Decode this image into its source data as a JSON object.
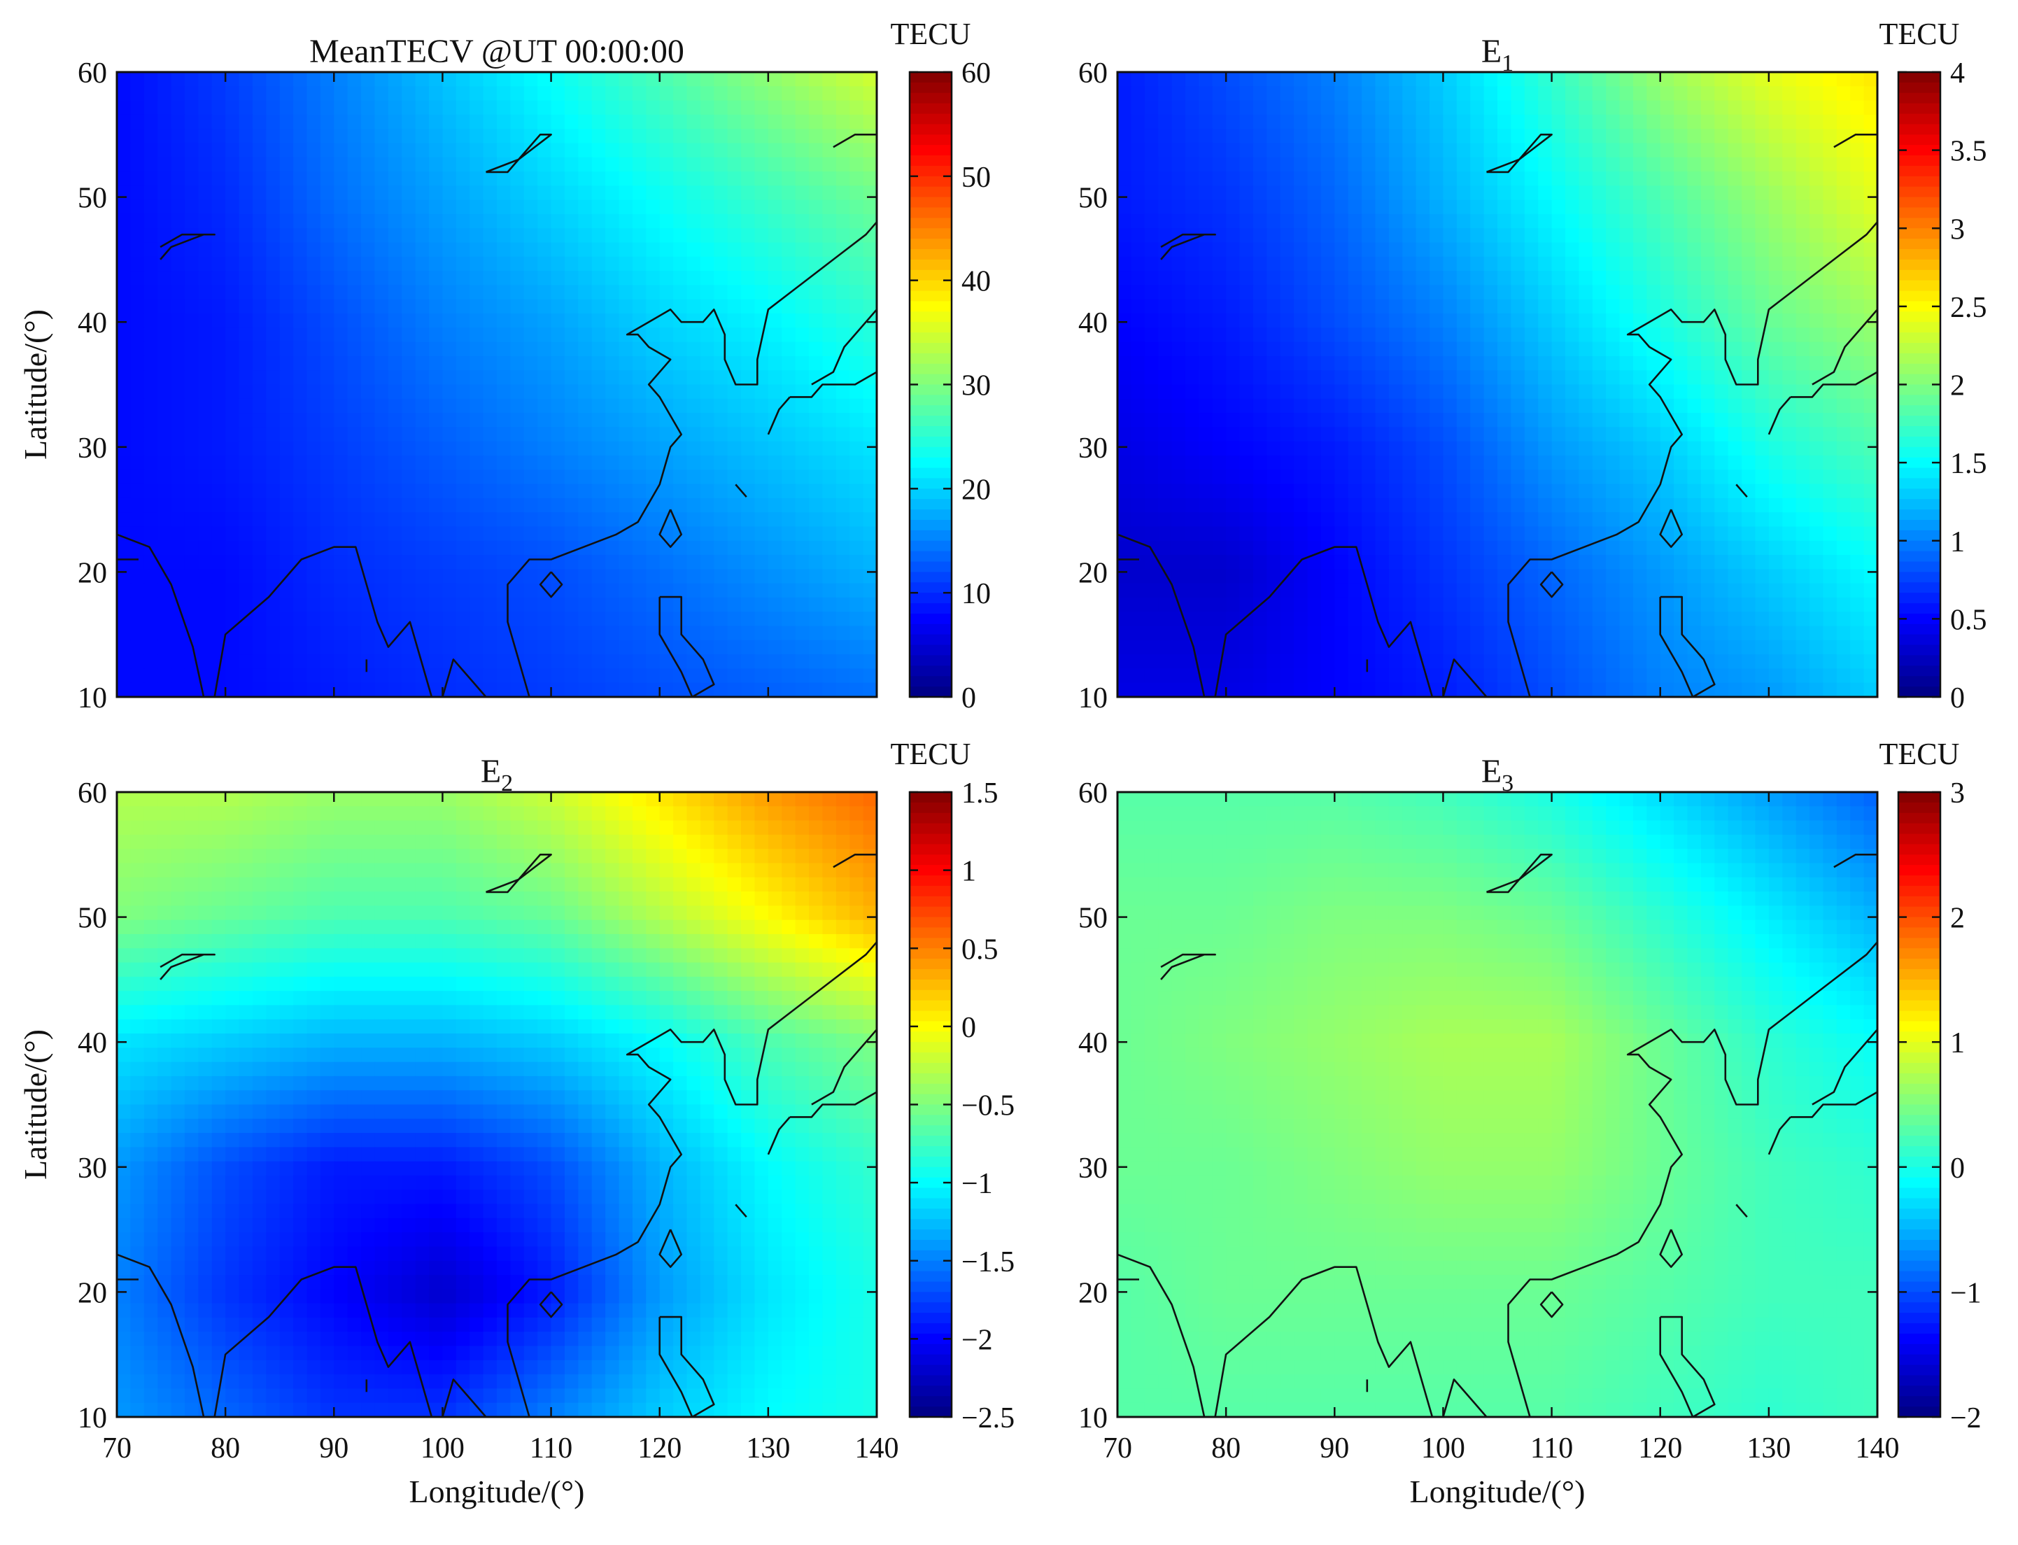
{
  "chart_data": [
    {
      "type": "heatmap",
      "title": "MeanTECV  @UT 00:00:00",
      "title_sub": "",
      "colorbar_label": "TECU",
      "xlabel": "",
      "ylabel": "Latitude/(°)",
      "xlim": [
        70,
        140
      ],
      "ylim": [
        10,
        60
      ],
      "x_ticks": [
        "70",
        "80",
        "90",
        "100",
        "110",
        "120",
        "130",
        "140"
      ],
      "y_ticks": [
        "10",
        "20",
        "30",
        "40",
        "50",
        "60"
      ],
      "clim": [
        0,
        60
      ],
      "colorbar_ticks": [
        "0",
        "10",
        "20",
        "30",
        "40",
        "50",
        "60"
      ],
      "colorbar_tick_values": [
        0,
        10,
        20,
        30,
        40,
        50,
        60
      ],
      "field_grid": [
        [
          8,
          8,
          9,
          10,
          11,
          12,
          13,
          14
        ],
        [
          8,
          8,
          10,
          11,
          12,
          14,
          16,
          18
        ],
        [
          8,
          9,
          11,
          13,
          15,
          17,
          19,
          21
        ],
        [
          8,
          9,
          12,
          15,
          17,
          20,
          22,
          25
        ],
        [
          8,
          10,
          14,
          17,
          20,
          23,
          26,
          29
        ],
        [
          8,
          11,
          15,
          19,
          23,
          27,
          31,
          35
        ]
      ]
    },
    {
      "type": "heatmap",
      "title": "E",
      "title_sub": "1",
      "colorbar_label": "TECU",
      "xlabel": "",
      "ylabel": "",
      "xlim": [
        70,
        140
      ],
      "ylim": [
        10,
        60
      ],
      "x_ticks": [
        "70",
        "80",
        "90",
        "100",
        "110",
        "120",
        "130",
        "140"
      ],
      "y_ticks": [
        "10",
        "20",
        "30",
        "40",
        "50",
        "60"
      ],
      "clim": [
        0,
        4
      ],
      "colorbar_ticks": [
        "0",
        "0.5",
        "1",
        "1.5",
        "2",
        "2.5",
        "3",
        "3.5",
        "4"
      ],
      "colorbar_tick_values": [
        0,
        0.5,
        1,
        1.5,
        2,
        2.5,
        3,
        3.5,
        4
      ],
      "field_grid": [
        [
          0.4,
          0.4,
          0.5,
          0.6,
          0.8,
          1.0,
          1.1,
          1.3
        ],
        [
          0.3,
          0.3,
          0.5,
          0.7,
          0.9,
          1.1,
          1.3,
          1.5
        ],
        [
          0.4,
          0.5,
          0.6,
          0.8,
          1.1,
          1.3,
          1.6,
          1.8
        ],
        [
          0.5,
          0.6,
          0.8,
          1.0,
          1.3,
          1.6,
          1.9,
          2.1
        ],
        [
          0.6,
          0.7,
          0.9,
          1.2,
          1.5,
          1.8,
          2.1,
          2.4
        ],
        [
          0.6,
          0.8,
          1.0,
          1.3,
          1.7,
          2.1,
          2.4,
          2.6
        ]
      ]
    },
    {
      "type": "heatmap",
      "title": "E",
      "title_sub": "2",
      "colorbar_label": "TECU",
      "xlabel": "Longitude/(°)",
      "ylabel": "Latitude/(°)",
      "xlim": [
        70,
        140
      ],
      "ylim": [
        10,
        60
      ],
      "x_ticks": [
        "70",
        "80",
        "90",
        "100",
        "110",
        "120",
        "130",
        "140"
      ],
      "y_ticks": [
        "10",
        "20",
        "30",
        "40",
        "50",
        "60"
      ],
      "clim": [
        -2.5,
        1.5
      ],
      "colorbar_ticks": [
        "−2.5",
        "−2",
        "−1.5",
        "−1",
        "−0.5",
        "0",
        "0.5",
        "1",
        "1.5"
      ],
      "colorbar_tick_values": [
        -2.5,
        -2,
        -1.5,
        -1,
        -0.5,
        0,
        0.5,
        1,
        1.5
      ],
      "field_grid": [
        [
          -1.4,
          -1.6,
          -1.8,
          -1.8,
          -1.5,
          -1.2,
          -1.0,
          -0.9
        ],
        [
          -1.5,
          -1.8,
          -2.0,
          -2.2,
          -1.9,
          -1.4,
          -1.1,
          -0.9
        ],
        [
          -1.4,
          -1.7,
          -1.9,
          -1.9,
          -1.7,
          -1.3,
          -1.0,
          -0.8
        ],
        [
          -1.1,
          -1.2,
          -1.3,
          -1.3,
          -1.2,
          -1.0,
          -0.7,
          -0.5
        ],
        [
          -0.5,
          -0.6,
          -0.7,
          -0.7,
          -0.6,
          -0.3,
          0.0,
          0.3
        ],
        [
          -0.3,
          -0.3,
          -0.4,
          -0.4,
          -0.2,
          0.1,
          0.4,
          0.6
        ]
      ]
    },
    {
      "type": "heatmap",
      "title": "E",
      "title_sub": "3",
      "colorbar_label": "TECU",
      "xlabel": "Longitude/(°)",
      "ylabel": "",
      "xlim": [
        70,
        140
      ],
      "ylim": [
        10,
        60
      ],
      "x_ticks": [
        "70",
        "80",
        "90",
        "100",
        "110",
        "120",
        "130",
        "140"
      ],
      "y_ticks": [
        "10",
        "20",
        "30",
        "40",
        "50",
        "60"
      ],
      "clim": [
        -2,
        3
      ],
      "colorbar_ticks": [
        "−2",
        "−1",
        "0",
        "1",
        "2",
        "3"
      ],
      "colorbar_tick_values": [
        -2,
        -1,
        0,
        1,
        2,
        3
      ],
      "field_grid": [
        [
          0.3,
          0.3,
          0.3,
          0.3,
          0.3,
          0.2,
          0.1,
          0.2
        ],
        [
          0.3,
          0.4,
          0.4,
          0.4,
          0.4,
          0.3,
          0.2,
          0.2
        ],
        [
          0.4,
          0.4,
          0.5,
          0.6,
          0.6,
          0.4,
          0.2,
          0.1
        ],
        [
          0.4,
          0.5,
          0.6,
          0.7,
          0.7,
          0.4,
          0.1,
          -0.1
        ],
        [
          0.4,
          0.4,
          0.5,
          0.5,
          0.4,
          0.1,
          -0.2,
          -0.5
        ],
        [
          0.3,
          0.3,
          0.3,
          0.2,
          0.0,
          -0.3,
          -0.6,
          -0.9
        ]
      ]
    }
  ]
}
